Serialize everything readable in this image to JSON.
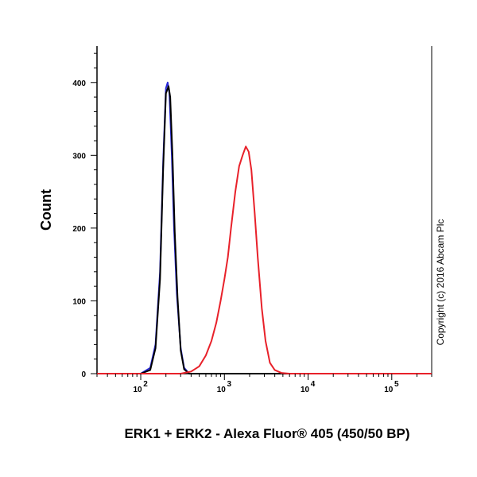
{
  "chart_data": {
    "type": "line",
    "xlabel": "ERK1 + ERK2 - Alexa Fluor® 405 (450/50 BP)",
    "ylabel": "Count",
    "x_scale": "log",
    "xlim": [
      30,
      300000
    ],
    "ylim": [
      0,
      450
    ],
    "y_ticks": [
      0,
      100,
      200,
      300,
      400
    ],
    "x_ticks": [
      {
        "value": 100,
        "base": "10",
        "exp": "2"
      },
      {
        "value": 1000,
        "base": "10",
        "exp": "3"
      },
      {
        "value": 10000,
        "base": "10",
        "exp": "4"
      },
      {
        "value": 100000,
        "base": "10",
        "exp": "5"
      }
    ],
    "grid": false,
    "series": [
      {
        "color": "#2a2ad8",
        "x": [
          30,
          100,
          130,
          150,
          170,
          185,
          200,
          210,
          220,
          235,
          250,
          270,
          300,
          330,
          380,
          450,
          300000
        ],
        "y": [
          0,
          0,
          8,
          40,
          140,
          290,
          392,
          400,
          385,
          300,
          200,
          110,
          35,
          8,
          0,
          0,
          0
        ]
      },
      {
        "color": "#000000",
        "x": [
          30,
          100,
          130,
          150,
          170,
          185,
          200,
          215,
          225,
          240,
          255,
          275,
          300,
          330,
          380,
          450,
          300000
        ],
        "y": [
          0,
          0,
          5,
          35,
          130,
          280,
          385,
          395,
          380,
          295,
          195,
          105,
          32,
          6,
          0,
          0,
          0
        ]
      },
      {
        "color": "#e8212a",
        "x": [
          30,
          300,
          400,
          500,
          600,
          700,
          800,
          900,
          1000,
          1100,
          1200,
          1350,
          1500,
          1650,
          1800,
          1950,
          2100,
          2300,
          2500,
          2800,
          3100,
          3500,
          4000,
          4800,
          6000,
          300000
        ],
        "y": [
          0,
          0,
          3,
          10,
          25,
          45,
          70,
          100,
          130,
          160,
          200,
          250,
          285,
          300,
          312,
          305,
          280,
          220,
          160,
          90,
          45,
          15,
          5,
          1,
          0,
          0
        ]
      }
    ],
    "annotations": [
      "Copyright (c) 2016 Abcam Plc"
    ]
  }
}
